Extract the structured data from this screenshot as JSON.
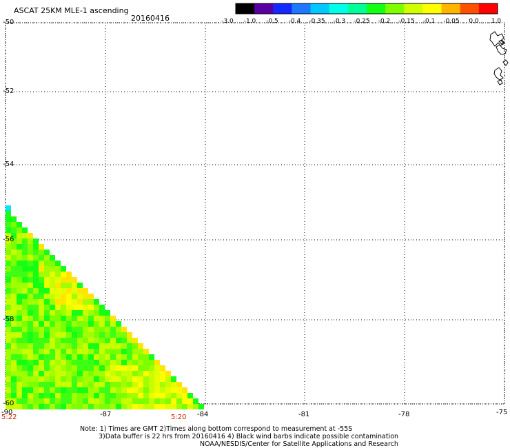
{
  "header": {
    "title": "ASCAT 25KM MLE-1 ascending",
    "date": "20160416"
  },
  "colorbar": {
    "labels": [
      "-3.0",
      "-1.0",
      "-0.5",
      "-0.4",
      "-0.35",
      "-0.3",
      "-0.25",
      "-0.2",
      "-0.15",
      "-0.1",
      "-0.05",
      "0.0",
      "1.0"
    ],
    "colors": [
      "#000000",
      "#5a00a0",
      "#1428ff",
      "#1e78ff",
      "#00c8ff",
      "#00ffe6",
      "#00ff96",
      "#14ff14",
      "#7dff00",
      "#d2ff00",
      "#ffff00",
      "#ffb400",
      "#ff5000",
      "#ff0000"
    ]
  },
  "map": {
    "lat_labels": [
      "-50",
      "-52",
      "-54",
      "-56",
      "-58",
      "-60"
    ],
    "lon_labels": [
      "-90",
      "-87",
      "-84",
      "-81",
      "-78",
      "-75"
    ],
    "time_labels": {
      "left": "5:22",
      "middle": "5:20"
    }
  },
  "notes": {
    "line1": "Note: 1) Times are GMT 2)Times along bottom correspond to measurement at -55S",
    "line2": "3)Data buffer is 22 hrs from 20160416 4) Black wind barbs indicate possible contamination",
    "line3": "NOAA/NESDIS/Center for Satellite Applications and Research"
  }
}
